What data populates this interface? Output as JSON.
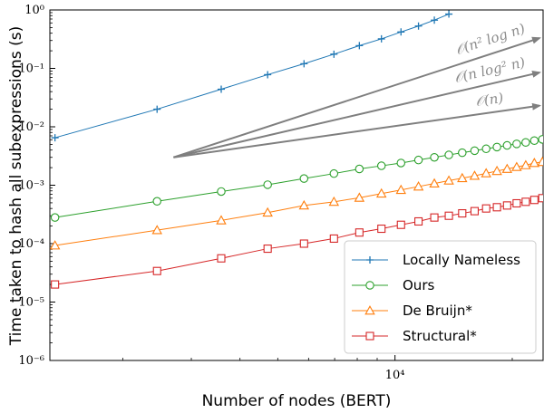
{
  "chart_data": {
    "type": "line",
    "xlabel": "Number of nodes (BERT)",
    "ylabel": "Time taken to hash all subexpressions (s)",
    "x_scale": "log",
    "y_scale": "log",
    "xlim": [
      1300,
      24000
    ],
    "ylim": [
      1e-06,
      1
    ],
    "grid": false,
    "legend_position": "lower-right",
    "x_tick_labels": [
      {
        "value": 10000,
        "text": "10⁴"
      }
    ],
    "y_tick_labels": [
      {
        "value": 1e-06,
        "text": "10⁻⁶"
      },
      {
        "value": 1e-05,
        "text": "10⁻⁵"
      },
      {
        "value": 0.0001,
        "text": "10⁻⁴"
      },
      {
        "value": 0.001,
        "text": "10⁻³"
      },
      {
        "value": 0.01,
        "text": "10⁻²"
      },
      {
        "value": 0.1,
        "text": "10⁻¹"
      },
      {
        "value": 1,
        "text": "10⁰"
      }
    ],
    "series": [
      {
        "name": "Locally Nameless",
        "color": "#1f77b4",
        "marker": "plus",
        "x": [
          1340,
          2450,
          3580,
          4710,
          5840,
          6970,
          8100,
          9230,
          10360,
          11490,
          12620,
          13750
        ],
        "y": [
          0.0065,
          0.02,
          0.044,
          0.078,
          0.12,
          0.175,
          0.245,
          0.32,
          0.42,
          0.53,
          0.67,
          0.85
        ]
      },
      {
        "name": "Ours",
        "color": "#2ca02c",
        "marker": "circle",
        "x": [
          1340,
          2450,
          3580,
          4710,
          5840,
          6970,
          8100,
          9230,
          10360,
          11490,
          12620,
          13750,
          14880,
          16010,
          17140,
          18270,
          19400,
          20530,
          21660,
          22790,
          23900
        ],
        "y": [
          0.00028,
          0.00053,
          0.00078,
          0.00102,
          0.0013,
          0.00158,
          0.0019,
          0.00215,
          0.0024,
          0.0027,
          0.003,
          0.0033,
          0.0036,
          0.0039,
          0.0042,
          0.0045,
          0.0048,
          0.0051,
          0.0054,
          0.0058,
          0.0061
        ]
      },
      {
        "name": "De Bruijn*",
        "color": "#ff7f0e",
        "marker": "triangle",
        "x": [
          1340,
          2450,
          3580,
          4710,
          5840,
          6970,
          8100,
          9230,
          10360,
          11490,
          12620,
          13750,
          14880,
          16010,
          17140,
          18270,
          19400,
          20530,
          21660,
          22790,
          23900
        ],
        "y": [
          9.3e-05,
          0.00017,
          0.00025,
          0.00034,
          0.00045,
          0.00052,
          0.00061,
          0.00072,
          0.00083,
          0.00095,
          0.00107,
          0.0012,
          0.00132,
          0.00145,
          0.0016,
          0.00175,
          0.0019,
          0.00205,
          0.0022,
          0.0024,
          0.0025
        ]
      },
      {
        "name": "Structural*",
        "color": "#d62728",
        "marker": "square",
        "x": [
          1340,
          2450,
          3580,
          4710,
          5840,
          6970,
          8100,
          9230,
          10360,
          11490,
          12620,
          13750,
          14880,
          16010,
          17140,
          18270,
          19400,
          20530,
          21660,
          22790,
          23900
        ],
        "y": [
          2e-05,
          3.4e-05,
          5.6e-05,
          8.2e-05,
          0.0001,
          0.000122,
          0.000155,
          0.00018,
          0.00021,
          0.00024,
          0.00028,
          0.0003,
          0.00033,
          0.00036,
          0.0004,
          0.00042,
          0.00045,
          0.00049,
          0.00052,
          0.00056,
          0.0006
        ]
      }
    ],
    "complexity_guides": {
      "color": "#7f7f7f",
      "origin": {
        "x": 2700,
        "y": 0.003
      },
      "lines": [
        {
          "label": "𝒪(n² log n)",
          "end": {
            "x": 23500,
            "y": 0.33
          }
        },
        {
          "label": "𝒪(n log² n)",
          "end": {
            "x": 23500,
            "y": 0.085
          }
        },
        {
          "label": "𝒪(n)",
          "end": {
            "x": 23500,
            "y": 0.023
          }
        }
      ]
    }
  }
}
